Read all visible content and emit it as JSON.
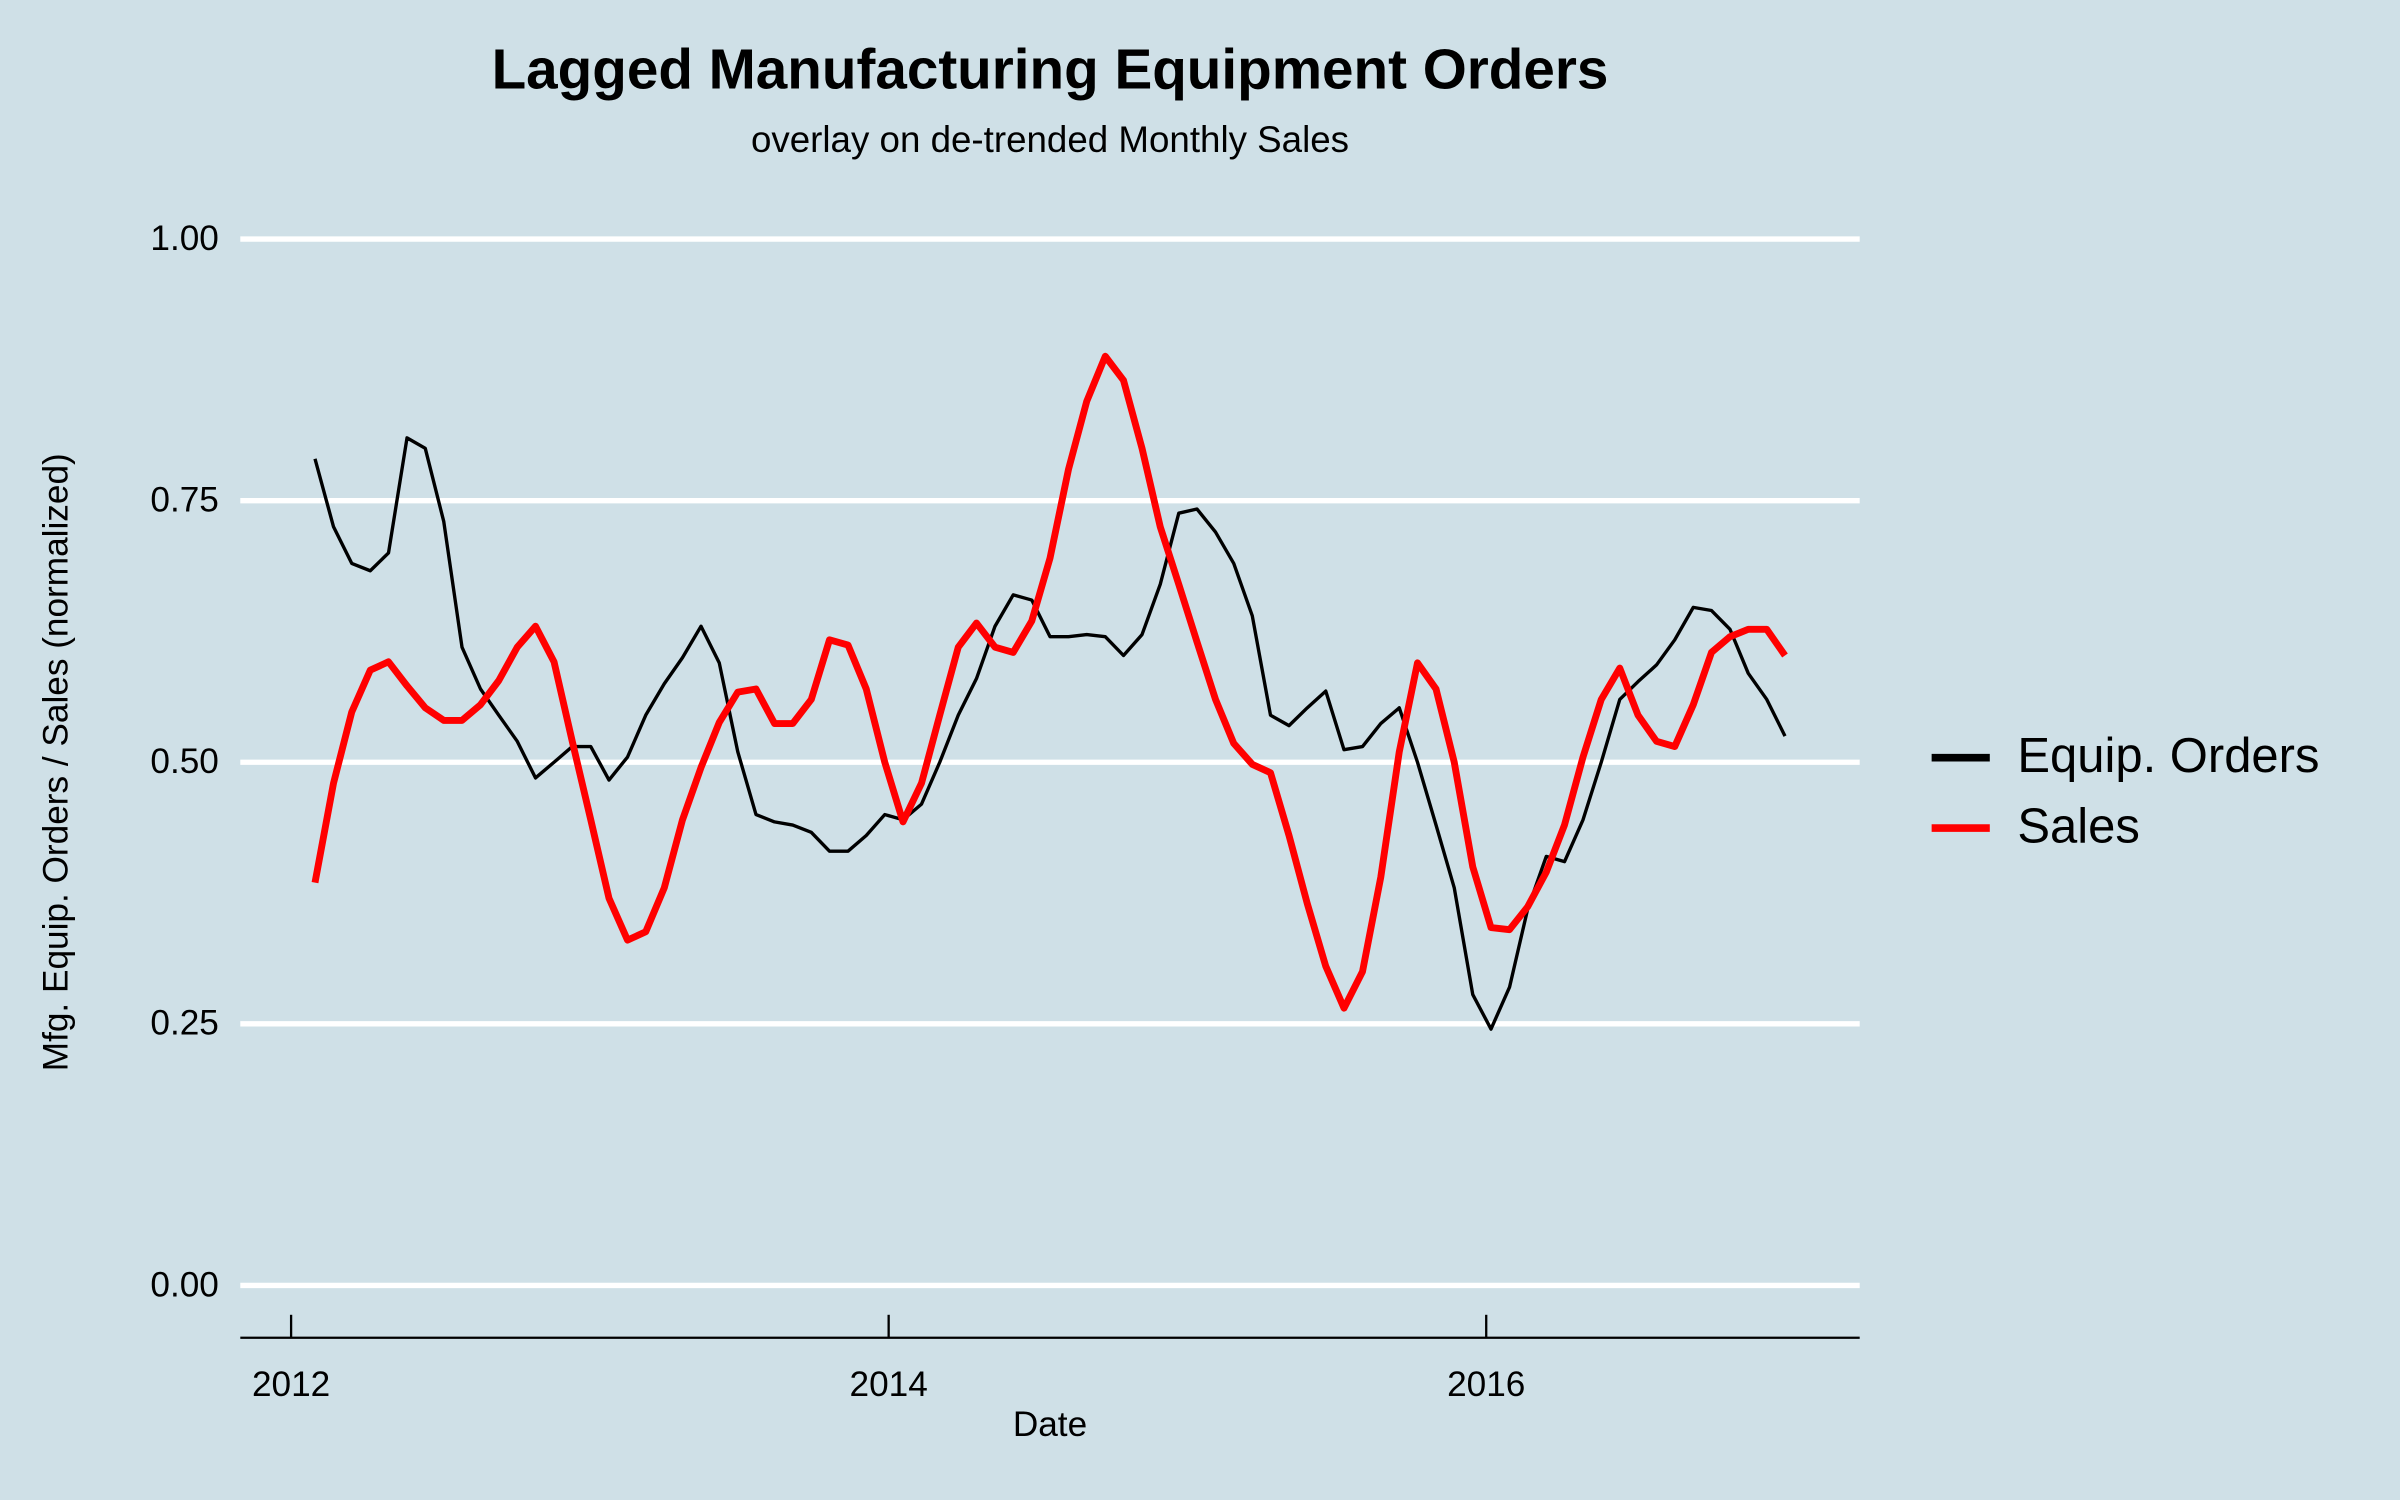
{
  "chart_data": {
    "type": "line",
    "title": "Lagged Manufacturing Equipment Orders",
    "subtitle": "overlay on de-trended Monthly Sales",
    "x_label": "Date",
    "y_label": "Mfg. Equip. Orders / Sales (normalized)",
    "x": [
      2012.08,
      2012.142,
      2012.203,
      2012.265,
      2012.326,
      2012.388,
      2012.449,
      2012.511,
      2012.572,
      2012.634,
      2012.695,
      2012.757,
      2012.818,
      2012.88,
      2012.941,
      2013.003,
      2013.064,
      2013.126,
      2013.187,
      2013.249,
      2013.31,
      2013.372,
      2013.433,
      2013.495,
      2013.556,
      2013.618,
      2013.679,
      2013.741,
      2013.802,
      2013.864,
      2013.925,
      2013.987,
      2014.048,
      2014.11,
      2014.171,
      2014.233,
      2014.294,
      2014.356,
      2014.417,
      2014.479,
      2014.54,
      2014.602,
      2014.663,
      2014.725,
      2014.786,
      2014.848,
      2014.909,
      2014.971,
      2015.032,
      2015.094,
      2015.155,
      2015.217,
      2015.278,
      2015.34,
      2015.401,
      2015.463,
      2015.524,
      2015.586,
      2015.647,
      2015.709,
      2015.77,
      2015.832,
      2015.893,
      2015.955,
      2016.016,
      2016.078,
      2016.139,
      2016.201,
      2016.262,
      2016.324,
      2016.385,
      2016.447,
      2016.508,
      2016.57,
      2016.631,
      2016.693,
      2016.754,
      2016.816,
      2016.877,
      2016.939,
      2017.0
    ],
    "series": [
      {
        "name": "Equip. Orders",
        "color": "#000000",
        "width": 2.2,
        "values": [
          0.79,
          0.725,
          0.69,
          0.683,
          0.7,
          0.81,
          0.8,
          0.73,
          0.61,
          0.57,
          0.545,
          0.52,
          0.485,
          0.5,
          0.515,
          0.515,
          0.483,
          0.505,
          0.545,
          0.575,
          0.6,
          0.63,
          0.595,
          0.51,
          0.45,
          0.443,
          0.44,
          0.433,
          0.415,
          0.415,
          0.43,
          0.45,
          0.445,
          0.46,
          0.5,
          0.545,
          0.58,
          0.63,
          0.66,
          0.655,
          0.62,
          0.62,
          0.622,
          0.62,
          0.602,
          0.622,
          0.67,
          0.738,
          0.742,
          0.72,
          0.69,
          0.64,
          0.545,
          0.535,
          0.552,
          0.568,
          0.512,
          0.515,
          0.537,
          0.552,
          0.5,
          0.44,
          0.38,
          0.278,
          0.245,
          0.285,
          0.36,
          0.41,
          0.405,
          0.445,
          0.5,
          0.56,
          0.577,
          0.593,
          0.617,
          0.648,
          0.645,
          0.627,
          0.585,
          0.56,
          0.525
        ]
      },
      {
        "name": "Sales",
        "color": "#ff0000",
        "width": 4.5,
        "values": [
          0.385,
          0.48,
          0.548,
          0.588,
          0.596,
          0.573,
          0.552,
          0.54,
          0.54,
          0.555,
          0.578,
          0.61,
          0.63,
          0.596,
          0.52,
          0.445,
          0.37,
          0.33,
          0.338,
          0.38,
          0.445,
          0.495,
          0.538,
          0.567,
          0.57,
          0.537,
          0.537,
          0.56,
          0.617,
          0.612,
          0.57,
          0.5,
          0.443,
          0.48,
          0.545,
          0.61,
          0.633,
          0.61,
          0.605,
          0.635,
          0.695,
          0.78,
          0.845,
          0.888,
          0.865,
          0.8,
          0.725,
          0.67,
          0.615,
          0.56,
          0.518,
          0.498,
          0.49,
          0.43,
          0.365,
          0.305,
          0.265,
          0.3,
          0.39,
          0.51,
          0.595,
          0.57,
          0.5,
          0.4,
          0.342,
          0.34,
          0.362,
          0.395,
          0.44,
          0.505,
          0.56,
          0.59,
          0.545,
          0.52,
          0.515,
          0.555,
          0.605,
          0.62,
          0.627,
          0.627,
          0.602
        ]
      }
    ],
    "xlim": [
      2011.83,
      2017.25
    ],
    "xticks": [
      2012,
      2014,
      2016
    ],
    "ylim": [
      -0.05,
      1.05
    ],
    "yticks": [
      {
        "value": 0,
        "label": "0.00"
      },
      {
        "value": 0.25,
        "label": "0.25"
      },
      {
        "value": 0.5,
        "label": "0.50"
      },
      {
        "value": 0.75,
        "label": "0.75"
      },
      {
        "value": 1,
        "label": "1.00"
      }
    ],
    "grid": true,
    "legend": "right"
  }
}
